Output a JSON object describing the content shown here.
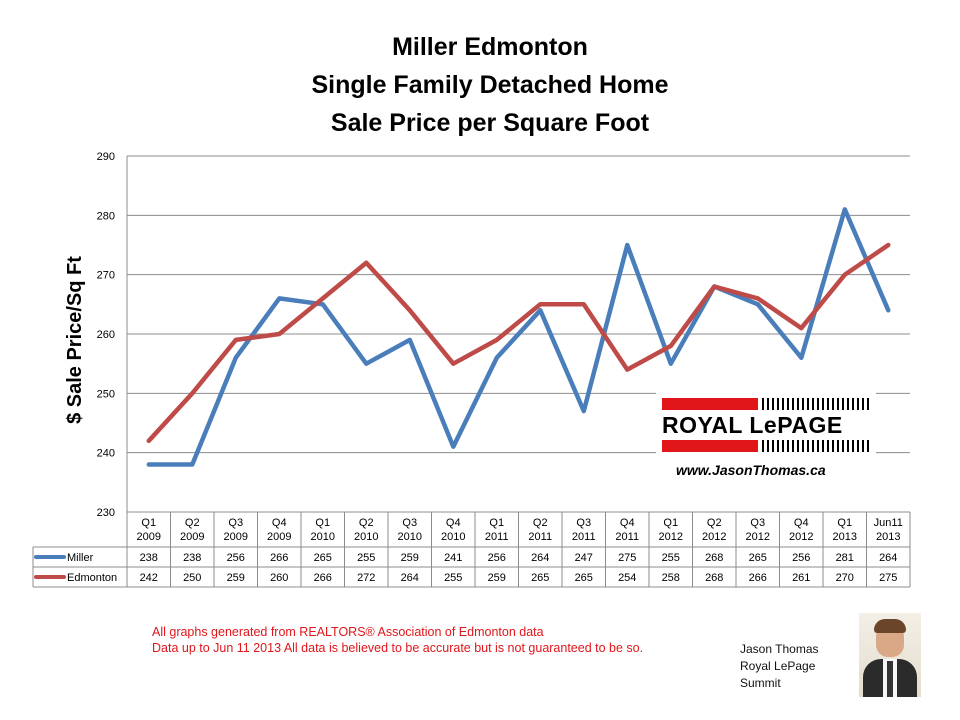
{
  "title": {
    "line1": "Miller Edmonton",
    "line2": "Single Family Detached Home",
    "line3": "Sale Price per Square Foot"
  },
  "chart_data": {
    "type": "line",
    "title": "Miller Edmonton Single Family Detached Home Sale Price per Square Foot",
    "xlabel": "",
    "ylabel": "$ Sale Price/Sq Ft",
    "ylim": [
      230,
      290
    ],
    "yticks": [
      230,
      240,
      250,
      260,
      270,
      280,
      290
    ],
    "grid": true,
    "categories": [
      [
        "Q1",
        "2009"
      ],
      [
        "Q2",
        "2009"
      ],
      [
        "Q3",
        "2009"
      ],
      [
        "Q4",
        "2009"
      ],
      [
        "Q1",
        "2010"
      ],
      [
        "Q2",
        "2010"
      ],
      [
        "Q3",
        "2010"
      ],
      [
        "Q4",
        "2010"
      ],
      [
        "Q1",
        "2011"
      ],
      [
        "Q2",
        "2011"
      ],
      [
        "Q3",
        "2011"
      ],
      [
        "Q4",
        "2011"
      ],
      [
        "Q1",
        "2012"
      ],
      [
        "Q2",
        "2012"
      ],
      [
        "Q3",
        "2012"
      ],
      [
        "Q4",
        "2012"
      ],
      [
        "Q1",
        "2013"
      ],
      [
        "Jun11",
        "2013"
      ]
    ],
    "series": [
      {
        "name": "Miller",
        "color": "#4a7ebb",
        "values": [
          238,
          238,
          256,
          266,
          265,
          255,
          259,
          241,
          256,
          264,
          247,
          275,
          255,
          268,
          265,
          256,
          281,
          264
        ]
      },
      {
        "name": "Edmonton",
        "color": "#be4b48",
        "values": [
          242,
          250,
          259,
          260,
          266,
          272,
          264,
          255,
          259,
          265,
          265,
          254,
          258,
          268,
          266,
          261,
          270,
          275
        ]
      }
    ]
  },
  "logo": {
    "brand": "ROYAL LePAGE",
    "website": "www.JasonThomas.ca"
  },
  "disclaimer": {
    "line1": "All graphs generated from REALTORS® Association of Edmonton data",
    "line2": "Data up to  Jun 11 2013  All data is believed to be accurate but is not guaranteed to be so."
  },
  "agent": {
    "name": "Jason Thomas",
    "company": "Royal LePage",
    "office": "Summit"
  }
}
